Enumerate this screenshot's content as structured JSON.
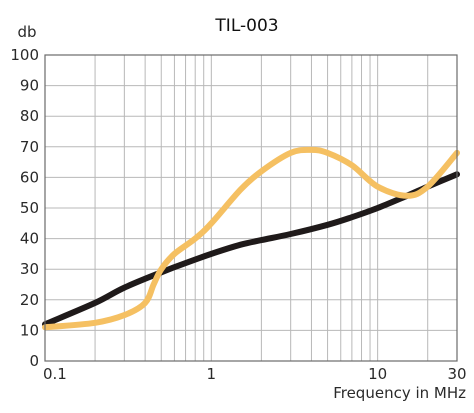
{
  "chart_data": {
    "type": "line",
    "title": "TIL-003",
    "ylabel": "db",
    "xlabel": "Frequency in MHz",
    "xscale": "log",
    "xlim": [
      0.1,
      30
    ],
    "ylim": [
      0,
      100
    ],
    "grid": true,
    "x_ticks": [
      0.1,
      1,
      10,
      30
    ],
    "x_tick_labels": [
      "0.1",
      "1",
      "10",
      "30"
    ],
    "y_ticks": [
      0,
      10,
      20,
      30,
      40,
      50,
      60,
      70,
      80,
      90,
      100
    ],
    "y_tick_labels": [
      "0",
      "10",
      "20",
      "30",
      "40",
      "50",
      "60",
      "70",
      "80",
      "90",
      "100"
    ],
    "series": [
      {
        "color": "#1f1a1a",
        "x": [
          0.1,
          0.2,
          0.3,
          0.5,
          0.7,
          1,
          1.5,
          2,
          3,
          5,
          7,
          10,
          15,
          20,
          30
        ],
        "y": [
          12,
          19,
          24,
          29,
          32,
          35,
          38,
          39.5,
          41.5,
          44.5,
          47,
          50,
          54,
          57,
          61
        ]
      },
      {
        "color": "#f5c062",
        "x": [
          0.1,
          0.2,
          0.3,
          0.4,
          0.45,
          0.5,
          0.6,
          0.8,
          1,
          1.5,
          2,
          3,
          4,
          5,
          7,
          10,
          15,
          20,
          30
        ],
        "y": [
          11,
          12.5,
          15,
          19,
          25,
          30,
          35,
          40,
          45,
          56,
          62,
          68,
          69,
          68,
          64,
          57,
          54,
          57,
          68
        ]
      }
    ]
  }
}
